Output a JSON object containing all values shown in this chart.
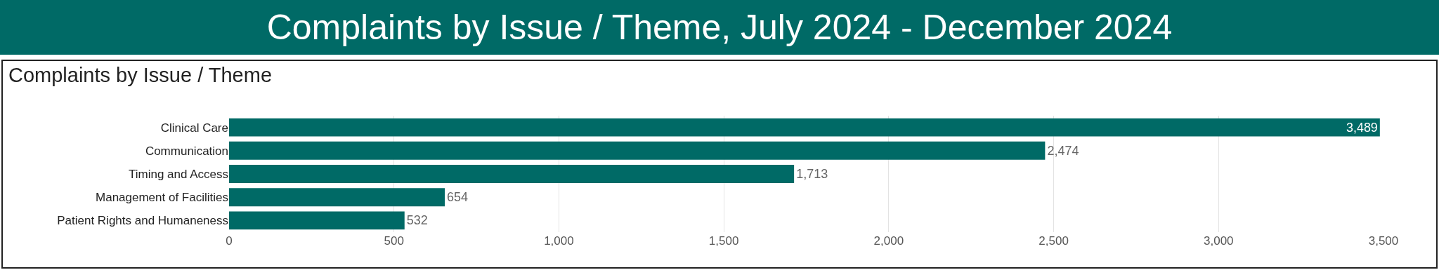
{
  "chart_data": {
    "type": "bar",
    "title": "Complaints by Issue / Theme, July 2024 - December 2024",
    "subtitle": "Complaints by Issue / Theme",
    "orientation": "horizontal",
    "categories": [
      "Clinical Care",
      "Communication",
      "Timing and Access",
      "Management of Facilities",
      "Patient Rights and Humaneness"
    ],
    "values": [
      3489,
      2474,
      1713,
      654,
      532
    ],
    "color": "#006a66",
    "xlim": [
      0,
      3500
    ],
    "xticks": [
      0,
      {
        "value": 500,
        "label": "500"
      },
      {
        "value": 1000,
        "label": "1,000"
      },
      {
        "value": 1500,
        "label": "1,500"
      },
      {
        "value": 2000,
        "label": "2,000"
      },
      {
        "value": 2500,
        "label": "2,500"
      },
      {
        "value": 3000,
        "label": "3,000"
      },
      {
        "value": 3500,
        "label": "3,500"
      }
    ],
    "value_labels": [
      "3,489",
      "2,474",
      "1,713",
      "654",
      "532"
    ],
    "grid": "x"
  }
}
